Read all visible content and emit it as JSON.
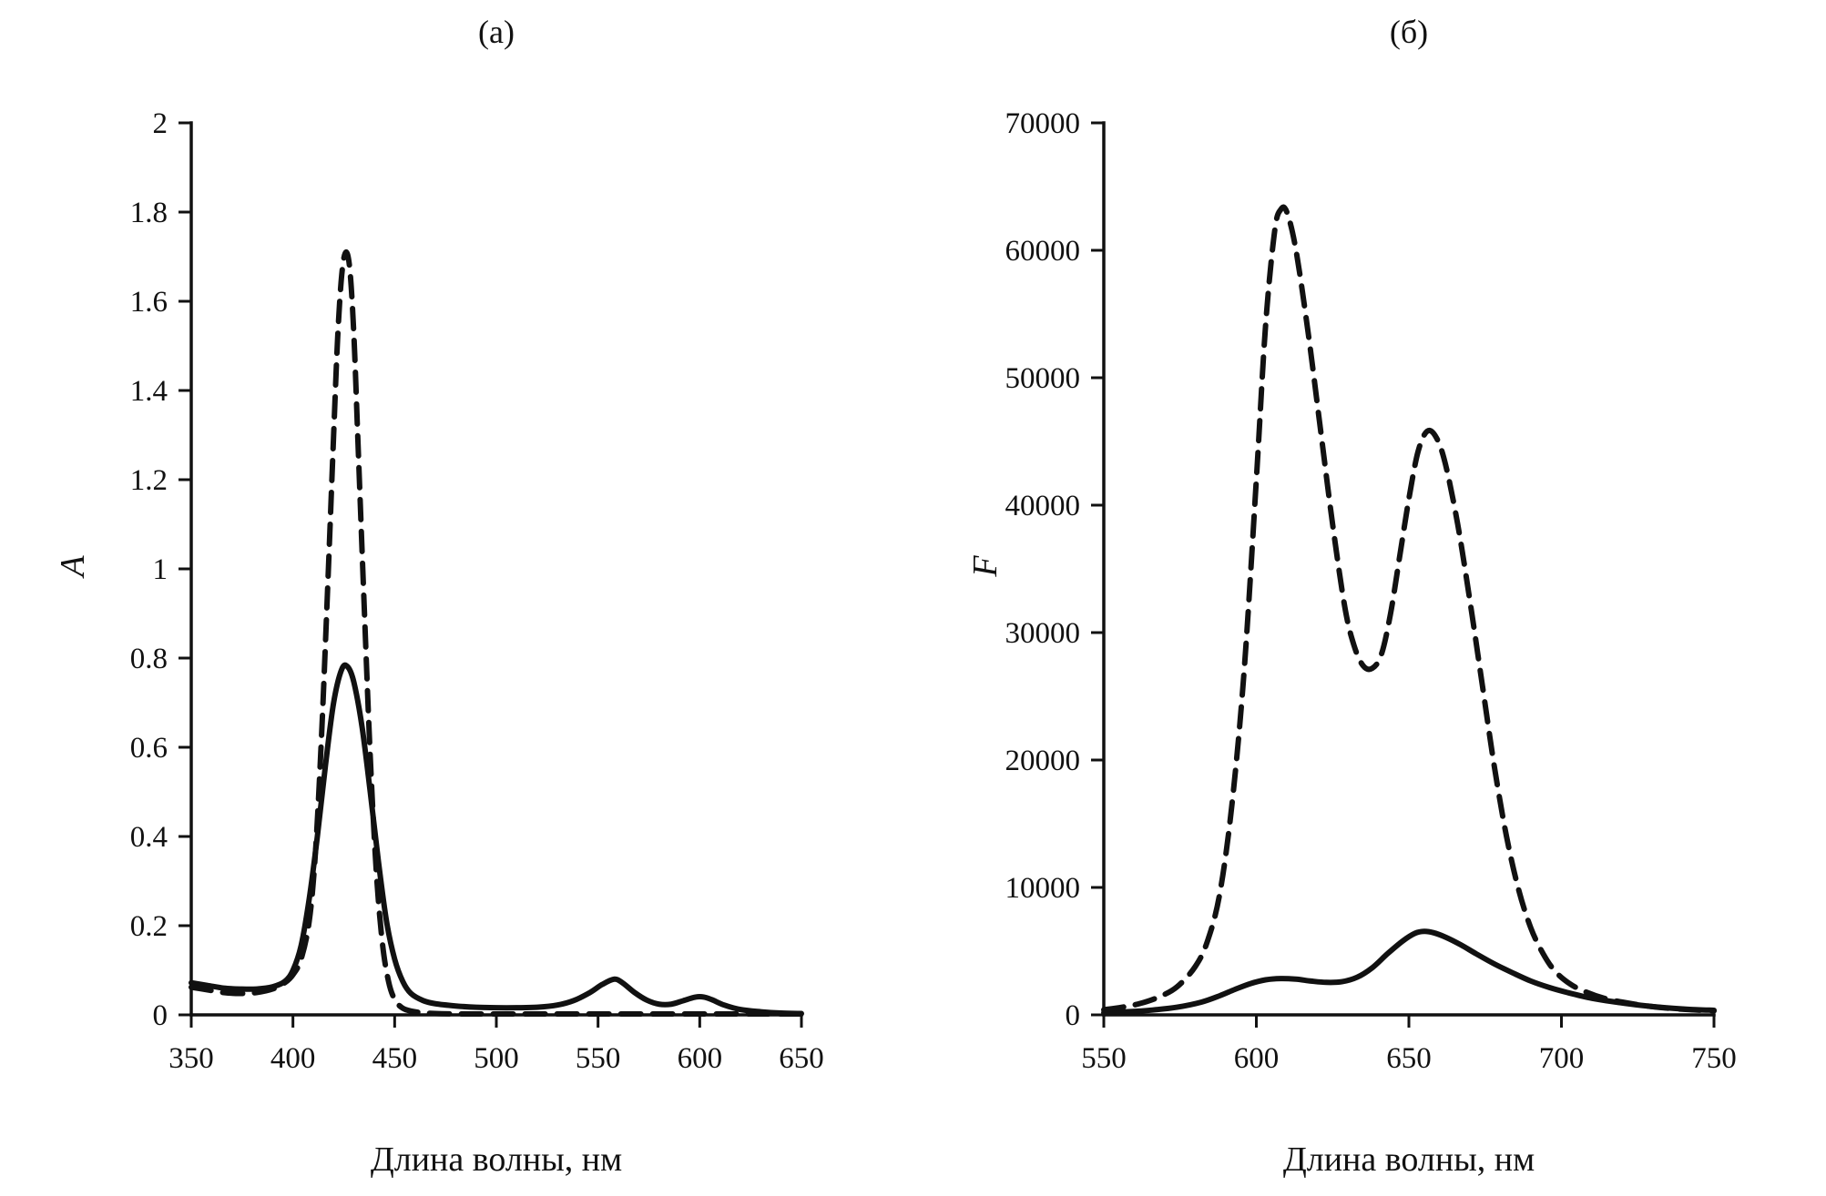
{
  "figure": {
    "background": "#ffffff",
    "ink_color": "#111111"
  },
  "chart_data": [
    {
      "type": "line",
      "title": "(а)",
      "xlabel": "Длина волны, нм",
      "ylabel": "A",
      "xlim": [
        350,
        650
      ],
      "ylim": [
        0,
        2
      ],
      "xticks": [
        350,
        400,
        450,
        500,
        550,
        600,
        650
      ],
      "xtick_labels": [
        "350",
        "400",
        "450",
        "500",
        "550",
        "600",
        "650"
      ],
      "yticks": [
        0,
        0.2,
        0.4,
        0.6,
        0.8,
        1,
        1.2,
        1.4,
        1.6,
        1.8,
        2
      ],
      "ytick_labels": [
        "0",
        "0.2",
        "0.4",
        "0.6",
        "0.8",
        "1",
        "1.2",
        "1.4",
        "1.6",
        "1.8",
        "2"
      ],
      "grid": false,
      "legend": "none",
      "series": [
        {
          "name": "solid",
          "style": "solid",
          "points": [
            [
              350,
              0.072
            ],
            [
              358,
              0.066
            ],
            [
              366,
              0.06
            ],
            [
              374,
              0.058
            ],
            [
              382,
              0.058
            ],
            [
              390,
              0.063
            ],
            [
              396,
              0.075
            ],
            [
              400,
              0.1
            ],
            [
              404,
              0.155
            ],
            [
              408,
              0.26
            ],
            [
              412,
              0.4
            ],
            [
              416,
              0.56
            ],
            [
              420,
              0.7
            ],
            [
              424,
              0.775
            ],
            [
              427,
              0.78
            ],
            [
              430,
              0.745
            ],
            [
              434,
              0.645
            ],
            [
              438,
              0.5
            ],
            [
              442,
              0.345
            ],
            [
              446,
              0.21
            ],
            [
              450,
              0.125
            ],
            [
              454,
              0.075
            ],
            [
              458,
              0.048
            ],
            [
              464,
              0.032
            ],
            [
              470,
              0.025
            ],
            [
              480,
              0.02
            ],
            [
              490,
              0.017
            ],
            [
              500,
              0.016
            ],
            [
              510,
              0.016
            ],
            [
              520,
              0.017
            ],
            [
              530,
              0.022
            ],
            [
              538,
              0.032
            ],
            [
              546,
              0.05
            ],
            [
              552,
              0.068
            ],
            [
              558,
              0.08
            ],
            [
              562,
              0.072
            ],
            [
              568,
              0.05
            ],
            [
              574,
              0.033
            ],
            [
              580,
              0.024
            ],
            [
              586,
              0.024
            ],
            [
              592,
              0.032
            ],
            [
              598,
              0.04
            ],
            [
              602,
              0.04
            ],
            [
              606,
              0.034
            ],
            [
              612,
              0.022
            ],
            [
              620,
              0.012
            ],
            [
              630,
              0.007
            ],
            [
              640,
              0.004
            ],
            [
              650,
              0.003
            ]
          ]
        },
        {
          "name": "dashed",
          "style": "dashed",
          "points": [
            [
              350,
              0.062
            ],
            [
              358,
              0.056
            ],
            [
              366,
              0.05
            ],
            [
              374,
              0.048
            ],
            [
              382,
              0.05
            ],
            [
              390,
              0.058
            ],
            [
              396,
              0.072
            ],
            [
              400,
              0.09
            ],
            [
              404,
              0.125
            ],
            [
              408,
              0.21
            ],
            [
              411,
              0.36
            ],
            [
              414,
              0.62
            ],
            [
              417,
              0.95
            ],
            [
              420,
              1.3
            ],
            [
              422,
              1.52
            ],
            [
              424,
              1.66
            ],
            [
              426,
              1.71
            ],
            [
              428,
              1.67
            ],
            [
              430,
              1.52
            ],
            [
              432,
              1.28
            ],
            [
              435,
              0.92
            ],
            [
              438,
              0.58
            ],
            [
              441,
              0.32
            ],
            [
              444,
              0.16
            ],
            [
              447,
              0.075
            ],
            [
              450,
              0.035
            ],
            [
              454,
              0.015
            ],
            [
              460,
              0.007
            ],
            [
              470,
              0.003
            ],
            [
              490,
              0.002
            ],
            [
              520,
              0.002
            ],
            [
              560,
              0.002
            ],
            [
              600,
              0.002
            ],
            [
              650,
              0.002
            ]
          ]
        }
      ]
    },
    {
      "type": "line",
      "title": "(б)",
      "xlabel": "Длина волны, нм",
      "ylabel": "F",
      "xlim": [
        550,
        750
      ],
      "ylim": [
        0,
        70000
      ],
      "xticks": [
        550,
        600,
        650,
        700,
        750
      ],
      "xtick_labels": [
        "550",
        "600",
        "650",
        "700",
        "750"
      ],
      "yticks": [
        0,
        10000,
        20000,
        30000,
        40000,
        50000,
        60000,
        70000
      ],
      "ytick_labels": [
        "0",
        "10000",
        "20000",
        "30000",
        "40000",
        "50000",
        "60000",
        "70000"
      ],
      "grid": false,
      "legend": "none",
      "series": [
        {
          "name": "solid",
          "style": "solid",
          "points": [
            [
              550,
              180
            ],
            [
              558,
              250
            ],
            [
              566,
              380
            ],
            [
              574,
              600
            ],
            [
              582,
              1000
            ],
            [
              588,
              1500
            ],
            [
              593,
              2000
            ],
            [
              598,
              2450
            ],
            [
              603,
              2750
            ],
            [
              608,
              2850
            ],
            [
              613,
              2800
            ],
            [
              618,
              2650
            ],
            [
              623,
              2550
            ],
            [
              628,
              2600
            ],
            [
              633,
              2950
            ],
            [
              638,
              3700
            ],
            [
              643,
              4800
            ],
            [
              648,
              5800
            ],
            [
              652,
              6400
            ],
            [
              655,
              6550
            ],
            [
              658,
              6450
            ],
            [
              662,
              6100
            ],
            [
              667,
              5500
            ],
            [
              672,
              4800
            ],
            [
              678,
              4000
            ],
            [
              684,
              3300
            ],
            [
              690,
              2650
            ],
            [
              696,
              2150
            ],
            [
              702,
              1750
            ],
            [
              710,
              1300
            ],
            [
              718,
              1000
            ],
            [
              726,
              750
            ],
            [
              734,
              560
            ],
            [
              742,
              430
            ],
            [
              750,
              360
            ]
          ]
        },
        {
          "name": "dashed",
          "style": "dashed",
          "points": [
            [
              550,
              400
            ],
            [
              556,
              600
            ],
            [
              562,
              900
            ],
            [
              568,
              1400
            ],
            [
              574,
              2200
            ],
            [
              580,
              3800
            ],
            [
              584,
              5800
            ],
            [
              588,
              9500
            ],
            [
              592,
              16500
            ],
            [
              596,
              27000
            ],
            [
              600,
              42000
            ],
            [
              603,
              54000
            ],
            [
              606,
              61500
            ],
            [
              608,
              63200
            ],
            [
              610,
              63000
            ],
            [
              613,
              60000
            ],
            [
              617,
              53500
            ],
            [
              621,
              46000
            ],
            [
              625,
              38500
            ],
            [
              629,
              32000
            ],
            [
              632,
              29000
            ],
            [
              635,
              27400
            ],
            [
              638,
              27200
            ],
            [
              641,
              28300
            ],
            [
              644,
              31500
            ],
            [
              647,
              36000
            ],
            [
              650,
              40500
            ],
            [
              653,
              44200
            ],
            [
              656,
              45800
            ],
            [
              659,
              45300
            ],
            [
              662,
              43200
            ],
            [
              666,
              38500
            ],
            [
              670,
              32500
            ],
            [
              674,
              26000
            ],
            [
              678,
              19500
            ],
            [
              682,
              14000
            ],
            [
              686,
              9800
            ],
            [
              690,
              6800
            ],
            [
              694,
              4800
            ],
            [
              698,
              3400
            ],
            [
              703,
              2400
            ],
            [
              708,
              1800
            ],
            [
              714,
              1300
            ],
            [
              720,
              1000
            ],
            [
              728,
              700
            ],
            [
              736,
              500
            ],
            [
              744,
              380
            ],
            [
              750,
              320
            ]
          ]
        }
      ]
    }
  ]
}
